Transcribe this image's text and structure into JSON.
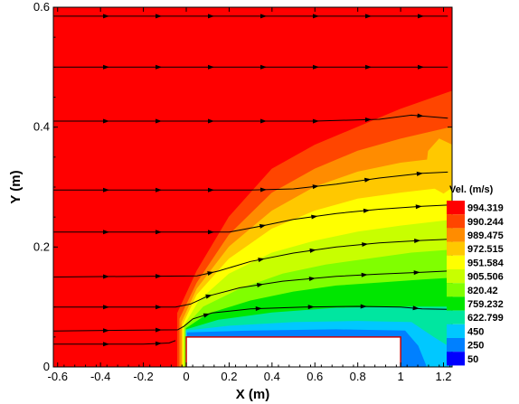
{
  "chart_data": {
    "type": "heatmap",
    "title": "",
    "xlabel": "X (m)",
    "ylabel": "Y (m)",
    "xlim": [
      -0.62,
      1.24
    ],
    "ylim": [
      0,
      0.6
    ],
    "xticks": [
      "-0.6",
      "-0.4",
      "-0.2",
      "0",
      "0.2",
      "0.4",
      "0.6",
      "0.8",
      "1",
      "1.2"
    ],
    "xtick_values": [
      -0.6,
      -0.4,
      -0.2,
      0,
      0.2,
      0.4,
      0.6,
      0.8,
      1,
      1.2
    ],
    "yticks": [
      "0",
      "0.2",
      "0.4",
      "0.6"
    ],
    "ytick_values": [
      0,
      0.2,
      0.4,
      0.6
    ],
    "legend": {
      "title": "Vel. (m/s)",
      "placement": "right",
      "levels": [
        "994.319",
        "990.244",
        "989.475",
        "972.515",
        "951.584",
        "905.506",
        "820.42",
        "759.232",
        "622.799",
        "450",
        "250",
        "50"
      ],
      "colors": [
        "#ff0000",
        "#ff4500",
        "#ff8c00",
        "#ffc800",
        "#ffff00",
        "#c8ff00",
        "#80ff00",
        "#00e600",
        "#00e6a0",
        "#00c8ff",
        "#0080ff",
        "#0000ff"
      ]
    },
    "obstacle": {
      "x": [
        0,
        1
      ],
      "y": [
        0,
        0.05
      ],
      "edge_color": "#cc0000"
    },
    "streamlines": [
      {
        "x": [
          -0.62,
          1.22
        ],
        "y": [
          0.585,
          0.585
        ]
      },
      {
        "x": [
          -0.62,
          1.22
        ],
        "y": [
          0.5,
          0.5
        ]
      },
      {
        "x": [
          -0.62,
          0.2,
          0.6,
          0.9,
          1.05,
          1.22
        ],
        "y": [
          0.41,
          0.41,
          0.41,
          0.413,
          0.42,
          0.415
        ]
      },
      {
        "x": [
          -0.62,
          0.3,
          0.5,
          0.7,
          0.9,
          1.1,
          1.22
        ],
        "y": [
          0.295,
          0.295,
          0.297,
          0.305,
          0.315,
          0.323,
          0.325
        ]
      },
      {
        "x": [
          -0.62,
          0.2,
          0.35,
          0.5,
          0.7,
          0.9,
          1.1,
          1.22
        ],
        "y": [
          0.225,
          0.225,
          0.235,
          0.246,
          0.256,
          0.263,
          0.268,
          0.27
        ]
      },
      {
        "x": [
          -0.62,
          0.05,
          0.15,
          0.3,
          0.5,
          0.7,
          0.9,
          1.1,
          1.22
        ],
        "y": [
          0.15,
          0.152,
          0.16,
          0.176,
          0.19,
          0.2,
          0.207,
          0.211,
          0.213
        ]
      },
      {
        "x": [
          -0.62,
          -0.05,
          0.02,
          0.1,
          0.25,
          0.45,
          0.7,
          0.9,
          1.1,
          1.22
        ],
        "y": [
          0.1,
          0.1,
          0.105,
          0.118,
          0.132,
          0.143,
          0.151,
          0.155,
          0.158,
          0.16
        ]
      },
      {
        "x": [
          -0.62,
          -0.04,
          -0.01,
          0.03,
          0.12,
          0.3,
          0.55,
          0.8,
          1.0,
          1.1,
          1.22
        ],
        "y": [
          0.06,
          0.062,
          0.068,
          0.08,
          0.09,
          0.097,
          0.1,
          0.101,
          0.1,
          0.097,
          0.096
        ]
      },
      {
        "x": [
          -0.62,
          -0.2,
          -0.08,
          -0.05
        ],
        "y": [
          0.038,
          0.038,
          0.04,
          0.044
        ]
      }
    ],
    "velocity_field_note": "",
    "regions": [
      {
        "level": 0,
        "polygon": [
          [
            -0.62,
            0
          ],
          [
            -0.62,
            0.6
          ],
          [
            1.24,
            0.6
          ],
          [
            1.24,
            0
          ]
        ]
      },
      {
        "level": 1,
        "polygon": [
          [
            -0.04,
            0
          ],
          [
            -0.04,
            0.09
          ],
          [
            0.05,
            0.16
          ],
          [
            0.2,
            0.25
          ],
          [
            0.4,
            0.33
          ],
          [
            0.6,
            0.37
          ],
          [
            0.8,
            0.4
          ],
          [
            1.0,
            0.43
          ],
          [
            1.24,
            0.46
          ],
          [
            1.24,
            0
          ]
        ]
      },
      {
        "level": 2,
        "polygon": [
          [
            -0.03,
            0
          ],
          [
            -0.03,
            0.08
          ],
          [
            0.05,
            0.14
          ],
          [
            0.2,
            0.22
          ],
          [
            0.4,
            0.29
          ],
          [
            0.6,
            0.33
          ],
          [
            0.8,
            0.36
          ],
          [
            1.0,
            0.38
          ],
          [
            1.24,
            0.4
          ],
          [
            1.24,
            0
          ]
        ]
      },
      {
        "level": 3,
        "polygon": [
          [
            -0.02,
            0
          ],
          [
            -0.02,
            0.075
          ],
          [
            0.05,
            0.13
          ],
          [
            0.2,
            0.2
          ],
          [
            0.4,
            0.26
          ],
          [
            0.6,
            0.3
          ],
          [
            0.8,
            0.325
          ],
          [
            1.0,
            0.34
          ],
          [
            1.24,
            0.35
          ],
          [
            1.24,
            0
          ]
        ]
      },
      {
        "level": 4,
        "polygon": [
          [
            -0.015,
            0
          ],
          [
            -0.015,
            0.07
          ],
          [
            0.05,
            0.12
          ],
          [
            0.2,
            0.18
          ],
          [
            0.4,
            0.23
          ],
          [
            0.6,
            0.26
          ],
          [
            0.8,
            0.28
          ],
          [
            1.0,
            0.29
          ],
          [
            1.24,
            0.3
          ],
          [
            1.24,
            0
          ]
        ]
      },
      {
        "level": 5,
        "polygon": [
          [
            -0.01,
            0
          ],
          [
            -0.01,
            0.068
          ],
          [
            0.06,
            0.11
          ],
          [
            0.2,
            0.155
          ],
          [
            0.4,
            0.19
          ],
          [
            0.6,
            0.21
          ],
          [
            0.8,
            0.225
          ],
          [
            1.0,
            0.235
          ],
          [
            1.24,
            0.245
          ],
          [
            1.24,
            0
          ]
        ]
      },
      {
        "level": 6,
        "polygon": [
          [
            -0.005,
            0
          ],
          [
            -0.005,
            0.066
          ],
          [
            0.08,
            0.1
          ],
          [
            0.25,
            0.13
          ],
          [
            0.45,
            0.155
          ],
          [
            0.65,
            0.17
          ],
          [
            0.85,
            0.18
          ],
          [
            1.05,
            0.19
          ],
          [
            1.24,
            0.195
          ],
          [
            1.24,
            0
          ]
        ]
      },
      {
        "level": 7,
        "polygon": [
          [
            0,
            0
          ],
          [
            0,
            0.064
          ],
          [
            0.1,
            0.088
          ],
          [
            0.3,
            0.11
          ],
          [
            0.5,
            0.125
          ],
          [
            0.7,
            0.135
          ],
          [
            0.9,
            0.14
          ],
          [
            1.1,
            0.145
          ],
          [
            1.24,
            0.148
          ],
          [
            1.24,
            0
          ]
        ]
      },
      {
        "level": 8,
        "polygon": [
          [
            0,
            0
          ],
          [
            0,
            0.062
          ],
          [
            0.15,
            0.078
          ],
          [
            0.4,
            0.09
          ],
          [
            0.7,
            0.098
          ],
          [
            1.0,
            0.1
          ],
          [
            1.24,
            0.1
          ],
          [
            1.24,
            0
          ]
        ]
      },
      {
        "level": 9,
        "polygon": [
          [
            0,
            0
          ],
          [
            0,
            0.06
          ],
          [
            0.2,
            0.068
          ],
          [
            0.5,
            0.074
          ],
          [
            0.8,
            0.076
          ],
          [
            1.05,
            0.074
          ],
          [
            1.15,
            0.05
          ],
          [
            1.24,
            0.03
          ],
          [
            1.24,
            0
          ]
        ]
      },
      {
        "level": 10,
        "polygon": [
          [
            0.005,
            0
          ],
          [
            0.005,
            0.057
          ],
          [
            0.3,
            0.06
          ],
          [
            0.7,
            0.062
          ],
          [
            1.02,
            0.06
          ],
          [
            1.08,
            0.035
          ],
          [
            1.12,
            0
          ],
          [
            1.0,
            0
          ]
        ]
      },
      {
        "level": 3,
        "polygon": [
          [
            1.15,
            0.3
          ],
          [
            1.12,
            0.33
          ],
          [
            1.13,
            0.36
          ],
          [
            1.18,
            0.38
          ],
          [
            1.24,
            0.37
          ],
          [
            1.24,
            0.3
          ],
          [
            1.2,
            0.29
          ]
        ]
      }
    ]
  }
}
